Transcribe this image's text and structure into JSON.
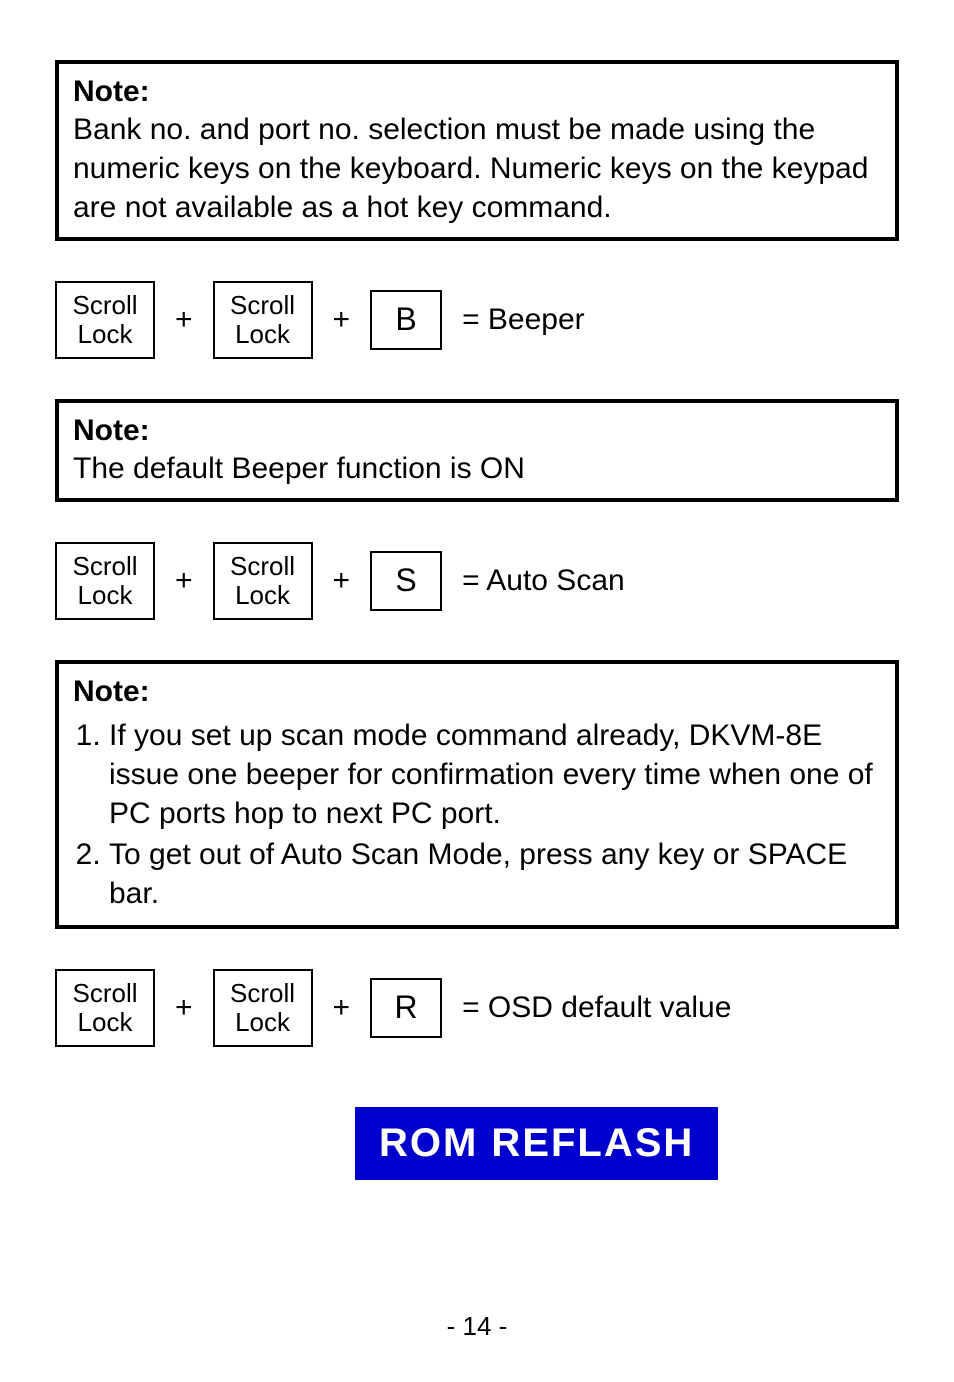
{
  "note1": {
    "title": "Note:",
    "body": "Bank no. and port no. selection must be made using the numeric keys on the keyboard. Numeric keys on the keypad are not available as a hot key command."
  },
  "row1": {
    "key1": "Scroll\nLock",
    "plus1": "+",
    "key2": "Scroll\nLock",
    "plus2": "+",
    "key3": "B",
    "result": "= Beeper"
  },
  "note2": {
    "title": "Note:",
    "body": "The default Beeper function is ON"
  },
  "row2": {
    "key1": "Scroll\nLock",
    "plus1": "+",
    "key2": "Scroll\nLock",
    "plus2": "+",
    "key3": "S",
    "result": "= Auto Scan"
  },
  "note3": {
    "title": "Note:",
    "item1": "If you set up scan mode command already, DKVM-8E issue one beeper for confirmation every time when one of PC ports hop to next PC port.",
    "item2": "To get out of Auto Scan Mode, press any key or SPACE bar."
  },
  "row3": {
    "key1": "Scroll\nLock",
    "plus1": "+",
    "key2": "Scroll\nLock",
    "plus2": "+",
    "key3": "R",
    "result": "= OSD default value"
  },
  "banner": "ROM   REFLASH",
  "pageNum": "- 14 -",
  "colors": {
    "bannerBg": "#0000cc",
    "bannerText": "#ffffff"
  }
}
